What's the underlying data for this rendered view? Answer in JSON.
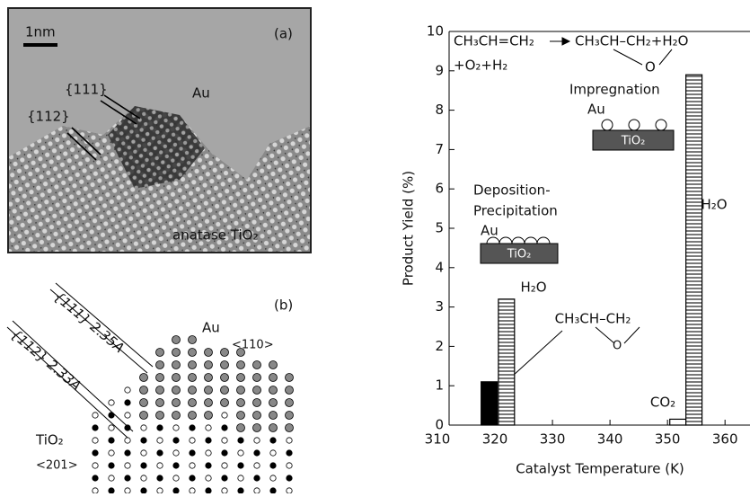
{
  "panel_a": {
    "scale_bar": "1nm",
    "label": "(a)",
    "plane_111": "{111}",
    "plane_112": "{112}",
    "metal": "Au",
    "support": "anatase TiO₂"
  },
  "panel_b": {
    "label": "(b)",
    "plane_111": "{111} 2.35A",
    "plane_112": "{112} 2.33A",
    "metal": "Au",
    "metal_direction": "<110>",
    "support": "TiO₂",
    "support_direction": "<201>"
  },
  "chart_data": {
    "type": "bar",
    "reaction_reactant": "CH₃CH=CH₂",
    "reaction_product": "CH₃CH–CH₂+H₂O",
    "reaction_epoxide_o": "O",
    "reaction_cofeed": "+O₂+H₂",
    "impregnation": {
      "title": "Impregnation",
      "metal": "Au",
      "support": "TiO₂"
    },
    "deposition": {
      "title_lines": [
        "Deposition-",
        "Precipitation"
      ],
      "metal": "Au",
      "support": "TiO₂"
    },
    "product_epoxide_o": "O",
    "x_label": "Catalyst Temperature (K)",
    "y_label": "Product Yield (%)",
    "xlim": [
      310,
      362
    ],
    "ylim": [
      0,
      10
    ],
    "xticks": [
      310,
      320,
      330,
      340,
      350,
      360
    ],
    "yticks": [
      0,
      1,
      2,
      3,
      4,
      5,
      6,
      7,
      8,
      9,
      10
    ],
    "bars": [
      {
        "name": "CH₃CH–CH₂",
        "x": 319,
        "value": 1.1,
        "fill": "solid"
      },
      {
        "name": "H₂O",
        "x": 322,
        "value": 3.2,
        "fill": "hatched"
      },
      {
        "name": "CO₂",
        "x": 351.8,
        "value": 0.15,
        "fill": "open"
      },
      {
        "name": "H₂O",
        "x": 354.6,
        "value": 8.9,
        "fill": "hatched"
      }
    ]
  }
}
